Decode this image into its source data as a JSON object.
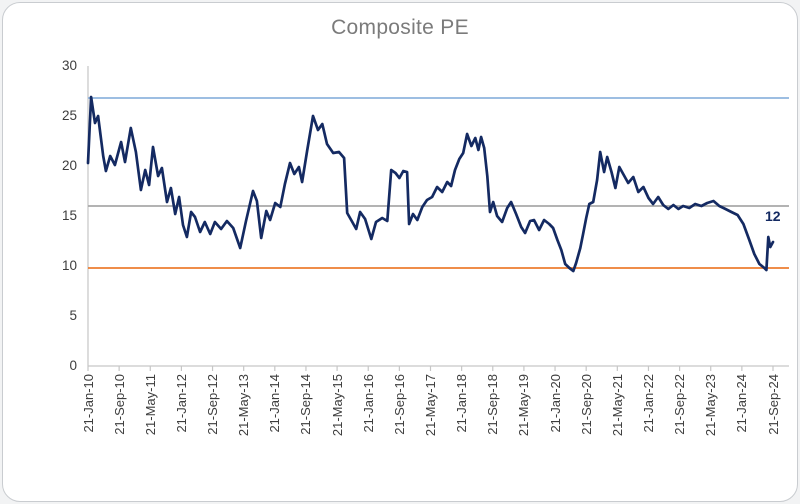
{
  "chart_data": {
    "type": "line",
    "title": "Composite PE",
    "ylabel": "",
    "xlabel": "",
    "ylim": [
      0,
      30
    ],
    "y_ticks": [
      0,
      5,
      10,
      15,
      20,
      25,
      30
    ],
    "x_tick_labels": [
      "21-Jan-10",
      "21-Sep-10",
      "21-May-11",
      "21-Jan-12",
      "21-Sep-12",
      "21-May-13",
      "21-Jan-14",
      "21-Sep-14",
      "21-May-15",
      "21-Jan-16",
      "21-Sep-16",
      "21-May-17",
      "21-Jan-18",
      "21-Sep-18",
      "21-May-19",
      "21-Jan-20",
      "21-Sep-20",
      "21-May-21",
      "21-Jan-22",
      "21-Sep-22",
      "21-May-23",
      "21-Jan-24",
      "21-Sep-24"
    ],
    "x_months_between_ticks": 8,
    "x_total_months": 176,
    "grid": "off",
    "legend": "none",
    "colors": {
      "series": "#142a62",
      "upper_band": "#8fb4de",
      "mean_line": "#a8a8a8",
      "lower_band": "#ed7d31",
      "axis": "#c6c6c6",
      "title": "#7b7b7b",
      "tick_text": "#3d3d3d"
    },
    "reference_lines": [
      {
        "name": "upper-band",
        "value": 26.8,
        "color": "#8fb4de"
      },
      {
        "name": "mean",
        "value": 16.0,
        "color": "#a8a8a8"
      },
      {
        "name": "lower-band",
        "value": 9.8,
        "color": "#ed7d31"
      }
    ],
    "end_label": {
      "text": "12",
      "value": 12.4,
      "color": "#142a62"
    },
    "series": [
      {
        "name": "Composite PE",
        "color": "#142a62",
        "points": [
          [
            0,
            20.3
          ],
          [
            0.8,
            26.9
          ],
          [
            1.8,
            24.3
          ],
          [
            2.6,
            25.0
          ],
          [
            3.9,
            21.0
          ],
          [
            4.6,
            19.5
          ],
          [
            5.7,
            21.0
          ],
          [
            6.9,
            20.1
          ],
          [
            8.5,
            22.4
          ],
          [
            9.5,
            20.4
          ],
          [
            11,
            23.8
          ],
          [
            12.3,
            21.4
          ],
          [
            13.6,
            17.6
          ],
          [
            14.7,
            19.6
          ],
          [
            15.7,
            18.1
          ],
          [
            16.7,
            21.9
          ],
          [
            18,
            19.0
          ],
          [
            19,
            19.8
          ],
          [
            20.3,
            16.4
          ],
          [
            21.3,
            17.8
          ],
          [
            22.4,
            15.2
          ],
          [
            23.4,
            16.9
          ],
          [
            24.4,
            14.1
          ],
          [
            25.4,
            12.9
          ],
          [
            26.5,
            15.4
          ],
          [
            27.5,
            14.9
          ],
          [
            28.8,
            13.4
          ],
          [
            30,
            14.4
          ],
          [
            31.4,
            13.2
          ],
          [
            32.6,
            14.4
          ],
          [
            34.2,
            13.7
          ],
          [
            35.7,
            14.5
          ],
          [
            37.3,
            13.8
          ],
          [
            39.1,
            11.8
          ],
          [
            40.6,
            14.5
          ],
          [
            42.4,
            17.5
          ],
          [
            43.4,
            16.5
          ],
          [
            44.5,
            12.8
          ],
          [
            45.8,
            15.5
          ],
          [
            46.8,
            14.6
          ],
          [
            48.1,
            16.3
          ],
          [
            49.4,
            15.9
          ],
          [
            50.6,
            18.2
          ],
          [
            51.9,
            20.3
          ],
          [
            53,
            19.2
          ],
          [
            54.2,
            19.9
          ],
          [
            55,
            18.4
          ],
          [
            56.3,
            21.5
          ],
          [
            57.8,
            25.0
          ],
          [
            59.1,
            23.6
          ],
          [
            60.2,
            24.2
          ],
          [
            61.4,
            22.2
          ],
          [
            63,
            21.3
          ],
          [
            64.5,
            21.4
          ],
          [
            65.8,
            20.8
          ],
          [
            66.6,
            15.3
          ],
          [
            67.9,
            14.4
          ],
          [
            68.9,
            13.7
          ],
          [
            69.9,
            15.4
          ],
          [
            71.2,
            14.7
          ],
          [
            72.8,
            12.7
          ],
          [
            74,
            14.4
          ],
          [
            75.6,
            14.8
          ],
          [
            76.9,
            14.5
          ],
          [
            77.9,
            19.6
          ],
          [
            79,
            19.3
          ],
          [
            80,
            18.8
          ],
          [
            81,
            19.5
          ],
          [
            82,
            19.4
          ],
          [
            82.5,
            14.2
          ],
          [
            83.5,
            15.2
          ],
          [
            84.6,
            14.6
          ],
          [
            85.9,
            15.9
          ],
          [
            87.1,
            16.6
          ],
          [
            88.4,
            16.9
          ],
          [
            89.7,
            17.9
          ],
          [
            91,
            17.4
          ],
          [
            92.3,
            18.4
          ],
          [
            93.3,
            18.0
          ],
          [
            94.3,
            19.6
          ],
          [
            95.4,
            20.7
          ],
          [
            96.4,
            21.3
          ],
          [
            97.4,
            23.2
          ],
          [
            98.5,
            22.0
          ],
          [
            99.5,
            22.8
          ],
          [
            100.3,
            21.6
          ],
          [
            101,
            22.9
          ],
          [
            101.8,
            21.8
          ],
          [
            102.6,
            19.0
          ],
          [
            103.3,
            15.4
          ],
          [
            104.1,
            16.4
          ],
          [
            105.1,
            15.0
          ],
          [
            106.4,
            14.4
          ],
          [
            107.7,
            15.8
          ],
          [
            108.7,
            16.4
          ],
          [
            110,
            15.2
          ],
          [
            111.3,
            13.9
          ],
          [
            112.3,
            13.3
          ],
          [
            113.6,
            14.5
          ],
          [
            114.6,
            14.6
          ],
          [
            115.9,
            13.6
          ],
          [
            117.2,
            14.6
          ],
          [
            118.5,
            14.2
          ],
          [
            119.5,
            13.8
          ],
          [
            120.6,
            12.6
          ],
          [
            121.6,
            11.6
          ],
          [
            122.6,
            10.2
          ],
          [
            123.7,
            9.8
          ],
          [
            124.7,
            9.5
          ],
          [
            125.4,
            10.3
          ],
          [
            126.5,
            11.8
          ],
          [
            127.2,
            13.2
          ],
          [
            128,
            14.8
          ],
          [
            128.8,
            16.2
          ],
          [
            129.8,
            16.4
          ],
          [
            130.8,
            18.6
          ],
          [
            131.6,
            21.4
          ],
          [
            132.6,
            19.4
          ],
          [
            133.4,
            20.9
          ],
          [
            134.5,
            19.4
          ],
          [
            135.5,
            17.8
          ],
          [
            136.5,
            19.9
          ],
          [
            137.5,
            19.2
          ],
          [
            138.8,
            18.3
          ],
          [
            140.1,
            18.9
          ],
          [
            141.4,
            17.4
          ],
          [
            142.7,
            17.9
          ],
          [
            144,
            16.8
          ],
          [
            145.2,
            16.2
          ],
          [
            146.5,
            16.9
          ],
          [
            147.8,
            16.1
          ],
          [
            149.1,
            15.7
          ],
          [
            150.4,
            16.1
          ],
          [
            151.7,
            15.7
          ],
          [
            152.9,
            16.0
          ],
          [
            154.5,
            15.8
          ],
          [
            156,
            16.2
          ],
          [
            157.6,
            16.0
          ],
          [
            159.1,
            16.3
          ],
          [
            160.7,
            16.5
          ],
          [
            162.2,
            16.0
          ],
          [
            163.8,
            15.7
          ],
          [
            165.3,
            15.4
          ],
          [
            166.9,
            15.1
          ],
          [
            168.4,
            14.2
          ],
          [
            169.9,
            12.6
          ],
          [
            171.2,
            11.2
          ],
          [
            172.5,
            10.2
          ],
          [
            173.8,
            9.8
          ],
          [
            174.3,
            9.6
          ],
          [
            174.8,
            12.9
          ],
          [
            175.3,
            11.9
          ],
          [
            176,
            12.4
          ]
        ]
      }
    ]
  }
}
